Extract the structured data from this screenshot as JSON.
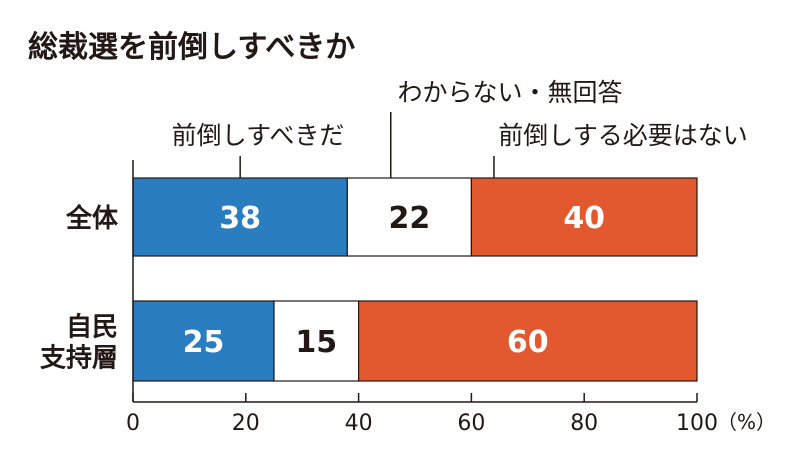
{
  "chart_data": {
    "type": "bar",
    "stacked": true,
    "orientation": "horizontal",
    "title": "総裁選を前倒しすべきか",
    "categories": [
      {
        "lines": [
          "全体"
        ]
      },
      {
        "lines": [
          "自民",
          "支持層"
        ]
      }
    ],
    "series": [
      {
        "name": "前倒しすべきだ",
        "color": "#2a7ec0",
        "label_color": "#ffffff",
        "values": [
          38,
          25
        ]
      },
      {
        "name": "わからない・無回答",
        "color": "#ffffff",
        "label_color": "#231815",
        "values": [
          22,
          15
        ]
      },
      {
        "name": "前倒しする必要はない",
        "color": "#e2592f",
        "label_color": "#ffffff",
        "values": [
          40,
          60
        ]
      }
    ],
    "xlim": [
      0,
      100
    ],
    "xticks": [
      "0",
      "20",
      "40",
      "60",
      "80",
      "100"
    ],
    "xunit": "（%）",
    "legend_placement": "top, above bars with leader lines"
  }
}
